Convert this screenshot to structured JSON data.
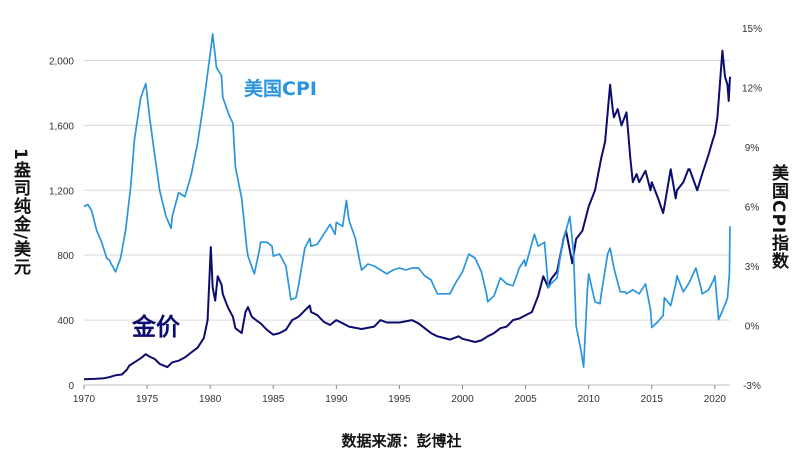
{
  "chart_data": {
    "type": "line",
    "title": "",
    "xlabel": "",
    "ylabel_left": "1盎司纯金/美元",
    "ylabel_right": "美国CPI指数",
    "xlim": [
      1970,
      2021.2
    ],
    "ylim_left": [
      0,
      2200
    ],
    "ylim_right": [
      -3,
      15
    ],
    "x_ticks": [
      "1970",
      "1975",
      "1980",
      "1985",
      "1990",
      "1995",
      "2000",
      "2005",
      "2010",
      "2015",
      "2020"
    ],
    "y_ticks_left": [
      "0",
      "400",
      "800",
      "1,200",
      "1,600",
      "2,000"
    ],
    "y_ticks_right": [
      "-3%",
      "0%",
      "3%",
      "6%",
      "9%",
      "12%",
      "15%"
    ],
    "colors": {
      "gold": "#0c0d6e",
      "cpi": "#2a95dc",
      "grid": "#d9d9d9"
    },
    "annotations": {
      "cpi": "美国CPI",
      "gold": "金价"
    },
    "source": "数据来源：彭博社",
    "series": [
      {
        "name": "金价",
        "axis": "left",
        "points": [
          [
            1970,
            35
          ],
          [
            1971,
            38
          ],
          [
            1971.6,
            42
          ],
          [
            1972,
            48
          ],
          [
            1972.5,
            60
          ],
          [
            1973,
            65
          ],
          [
            1973.4,
            95
          ],
          [
            1973.6,
            120
          ],
          [
            1974,
            140
          ],
          [
            1974.5,
            165
          ],
          [
            1974.9,
            190
          ],
          [
            1975.2,
            175
          ],
          [
            1975.6,
            160
          ],
          [
            1976,
            130
          ],
          [
            1976.6,
            110
          ],
          [
            1977,
            140
          ],
          [
            1977.5,
            150
          ],
          [
            1978,
            170
          ],
          [
            1978.5,
            200
          ],
          [
            1979,
            230
          ],
          [
            1979.5,
            290
          ],
          [
            1979.8,
            400
          ],
          [
            1980.05,
            850
          ],
          [
            1980.2,
            600
          ],
          [
            1980.4,
            520
          ],
          [
            1980.6,
            670
          ],
          [
            1980.9,
            620
          ],
          [
            1981,
            560
          ],
          [
            1981.4,
            480
          ],
          [
            1981.8,
            420
          ],
          [
            1982,
            350
          ],
          [
            1982.5,
            320
          ],
          [
            1982.8,
            450
          ],
          [
            1983,
            480
          ],
          [
            1983.3,
            420
          ],
          [
            1983.8,
            390
          ],
          [
            1984,
            380
          ],
          [
            1984.5,
            340
          ],
          [
            1985,
            310
          ],
          [
            1985.5,
            320
          ],
          [
            1986,
            340
          ],
          [
            1986.5,
            400
          ],
          [
            1987,
            420
          ],
          [
            1987.5,
            460
          ],
          [
            1987.9,
            490
          ],
          [
            1988,
            450
          ],
          [
            1988.5,
            430
          ],
          [
            1989,
            390
          ],
          [
            1989.5,
            370
          ],
          [
            1990,
            400
          ],
          [
            1990.5,
            380
          ],
          [
            1991,
            360
          ],
          [
            1992,
            345
          ],
          [
            1993,
            360
          ],
          [
            1993.5,
            400
          ],
          [
            1994,
            385
          ],
          [
            1995,
            385
          ],
          [
            1996,
            400
          ],
          [
            1996.5,
            380
          ],
          [
            1997,
            350
          ],
          [
            1997.5,
            320
          ],
          [
            1998,
            300
          ],
          [
            1998.5,
            290
          ],
          [
            1999,
            280
          ],
          [
            1999.7,
            300
          ],
          [
            2000,
            285
          ],
          [
            2001,
            265
          ],
          [
            2001.5,
            275
          ],
          [
            2002,
            300
          ],
          [
            2002.5,
            320
          ],
          [
            2003,
            350
          ],
          [
            2003.5,
            360
          ],
          [
            2004,
            400
          ],
          [
            2004.5,
            410
          ],
          [
            2005,
            430
          ],
          [
            2005.5,
            450
          ],
          [
            2006,
            550
          ],
          [
            2006.4,
            670
          ],
          [
            2006.8,
            600
          ],
          [
            2007,
            650
          ],
          [
            2007.5,
            700
          ],
          [
            2008,
            900
          ],
          [
            2008.2,
            950
          ],
          [
            2008.7,
            750
          ],
          [
            2009,
            900
          ],
          [
            2009.5,
            950
          ],
          [
            2010,
            1100
          ],
          [
            2010.5,
            1200
          ],
          [
            2011,
            1400
          ],
          [
            2011.3,
            1500
          ],
          [
            2011.7,
            1850
          ],
          [
            2011.9,
            1700
          ],
          [
            2012,
            1650
          ],
          [
            2012.3,
            1700
          ],
          [
            2012.6,
            1600
          ],
          [
            2013,
            1680
          ],
          [
            2013.3,
            1400
          ],
          [
            2013.5,
            1250
          ],
          [
            2013.8,
            1300
          ],
          [
            2014,
            1250
          ],
          [
            2014.5,
            1320
          ],
          [
            2014.9,
            1200
          ],
          [
            2015,
            1250
          ],
          [
            2015.5,
            1150
          ],
          [
            2015.9,
            1060
          ],
          [
            2016,
            1100
          ],
          [
            2016.5,
            1330
          ],
          [
            2016.9,
            1150
          ],
          [
            2017,
            1200
          ],
          [
            2017.5,
            1250
          ],
          [
            2017.9,
            1330
          ],
          [
            2018,
            1330
          ],
          [
            2018.6,
            1200
          ],
          [
            2019,
            1300
          ],
          [
            2019.5,
            1420
          ],
          [
            2019.8,
            1500
          ],
          [
            2020,
            1550
          ],
          [
            2020.2,
            1650
          ],
          [
            2020.6,
            2060
          ],
          [
            2020.8,
            1900
          ],
          [
            2021,
            1850
          ],
          [
            2021.1,
            1750
          ],
          [
            2021.2,
            1900
          ]
        ]
      },
      {
        "name": "美国CPI",
        "axis": "right",
        "points": [
          [
            1970,
            6.0
          ],
          [
            1970.3,
            6.1
          ],
          [
            1970.6,
            5.8
          ],
          [
            1971,
            4.8
          ],
          [
            1971.4,
            4.2
          ],
          [
            1971.8,
            3.4
          ],
          [
            1972,
            3.3
          ],
          [
            1972.5,
            2.7
          ],
          [
            1972.9,
            3.4
          ],
          [
            1973.3,
            4.8
          ],
          [
            1973.7,
            7.0
          ],
          [
            1974,
            9.4
          ],
          [
            1974.5,
            11.5
          ],
          [
            1974.9,
            12.2
          ],
          [
            1975.2,
            10.5
          ],
          [
            1975.6,
            8.6
          ],
          [
            1976,
            6.8
          ],
          [
            1976.5,
            5.5
          ],
          [
            1976.9,
            4.9
          ],
          [
            1977,
            5.5
          ],
          [
            1977.5,
            6.7
          ],
          [
            1978,
            6.5
          ],
          [
            1978.5,
            7.6
          ],
          [
            1979,
            9.2
          ],
          [
            1979.5,
            11.3
          ],
          [
            1980,
            13.7
          ],
          [
            1980.2,
            14.7
          ],
          [
            1980.5,
            13.0
          ],
          [
            1980.9,
            12.6
          ],
          [
            1981,
            11.5
          ],
          [
            1981.5,
            10.6
          ],
          [
            1981.8,
            10.2
          ],
          [
            1982,
            8.0
          ],
          [
            1982.5,
            6.4
          ],
          [
            1982.9,
            3.9
          ],
          [
            1983,
            3.5
          ],
          [
            1983.5,
            2.6
          ],
          [
            1983.9,
            3.8
          ],
          [
            1984,
            4.2
          ],
          [
            1984.5,
            4.2
          ],
          [
            1984.9,
            4.0
          ],
          [
            1985,
            3.5
          ],
          [
            1985.5,
            3.6
          ],
          [
            1986,
            3.0
          ],
          [
            1986.4,
            1.3
          ],
          [
            1986.8,
            1.4
          ],
          [
            1987,
            2.0
          ],
          [
            1987.5,
            3.9
          ],
          [
            1987.9,
            4.4
          ],
          [
            1988,
            4.0
          ],
          [
            1988.5,
            4.1
          ],
          [
            1989,
            4.6
          ],
          [
            1989.5,
            5.1
          ],
          [
            1989.9,
            4.6
          ],
          [
            1990,
            5.2
          ],
          [
            1990.5,
            5.0
          ],
          [
            1990.8,
            6.3
          ],
          [
            1991,
            5.3
          ],
          [
            1991.5,
            4.4
          ],
          [
            1991.9,
            3.1
          ],
          [
            1992,
            2.8
          ],
          [
            1992.5,
            3.1
          ],
          [
            1993,
            3.0
          ],
          [
            1993.5,
            2.8
          ],
          [
            1994,
            2.6
          ],
          [
            1994.5,
            2.8
          ],
          [
            1995,
            2.9
          ],
          [
            1995.5,
            2.8
          ],
          [
            1996,
            2.9
          ],
          [
            1996.5,
            2.9
          ],
          [
            1997,
            2.5
          ],
          [
            1997.5,
            2.3
          ],
          [
            1998,
            1.6
          ],
          [
            1998.5,
            1.6
          ],
          [
            1999,
            1.6
          ],
          [
            1999.5,
            2.2
          ],
          [
            2000,
            2.7
          ],
          [
            2000.5,
            3.6
          ],
          [
            2001,
            3.4
          ],
          [
            2001.5,
            2.7
          ],
          [
            2001.9,
            1.6
          ],
          [
            2002,
            1.2
          ],
          [
            2002.5,
            1.5
          ],
          [
            2003,
            2.4
          ],
          [
            2003.5,
            2.1
          ],
          [
            2004,
            2.0
          ],
          [
            2004.5,
            2.9
          ],
          [
            2004.9,
            3.3
          ],
          [
            2005,
            3.0
          ],
          [
            2005.7,
            4.6
          ],
          [
            2006,
            4.0
          ],
          [
            2006.5,
            4.2
          ],
          [
            2006.8,
            1.9
          ],
          [
            2007,
            2.1
          ],
          [
            2007.5,
            2.4
          ],
          [
            2007.9,
            4.1
          ],
          [
            2008,
            4.3
          ],
          [
            2008.5,
            5.5
          ],
          [
            2008.8,
            3.7
          ],
          [
            2009,
            0.0
          ],
          [
            2009.4,
            -1.3
          ],
          [
            2009.6,
            -2.1
          ],
          [
            2009.9,
            1.8
          ],
          [
            2010,
            2.6
          ],
          [
            2010.5,
            1.2
          ],
          [
            2010.9,
            1.1
          ],
          [
            2011,
            1.6
          ],
          [
            2011.5,
            3.6
          ],
          [
            2011.7,
            3.9
          ],
          [
            2012,
            2.9
          ],
          [
            2012.5,
            1.7
          ],
          [
            2012.9,
            1.7
          ],
          [
            2013,
            1.6
          ],
          [
            2013.5,
            1.8
          ],
          [
            2014,
            1.6
          ],
          [
            2014.5,
            2.1
          ],
          [
            2014.9,
            0.8
          ],
          [
            2015,
            -0.1
          ],
          [
            2015.5,
            0.2
          ],
          [
            2015.9,
            0.5
          ],
          [
            2016,
            1.4
          ],
          [
            2016.5,
            1.0
          ],
          [
            2016.9,
            2.1
          ],
          [
            2017,
            2.5
          ],
          [
            2017.5,
            1.7
          ],
          [
            2017.9,
            2.1
          ],
          [
            2018,
            2.2
          ],
          [
            2018.5,
            2.9
          ],
          [
            2018.9,
            1.9
          ],
          [
            2019,
            1.6
          ],
          [
            2019.5,
            1.8
          ],
          [
            2019.9,
            2.3
          ],
          [
            2020,
            2.5
          ],
          [
            2020.3,
            0.3
          ],
          [
            2020.5,
            0.6
          ],
          [
            2020.9,
            1.2
          ],
          [
            2021,
            1.4
          ],
          [
            2021.15,
            2.6
          ],
          [
            2021.2,
            5.0
          ]
        ]
      }
    ]
  }
}
